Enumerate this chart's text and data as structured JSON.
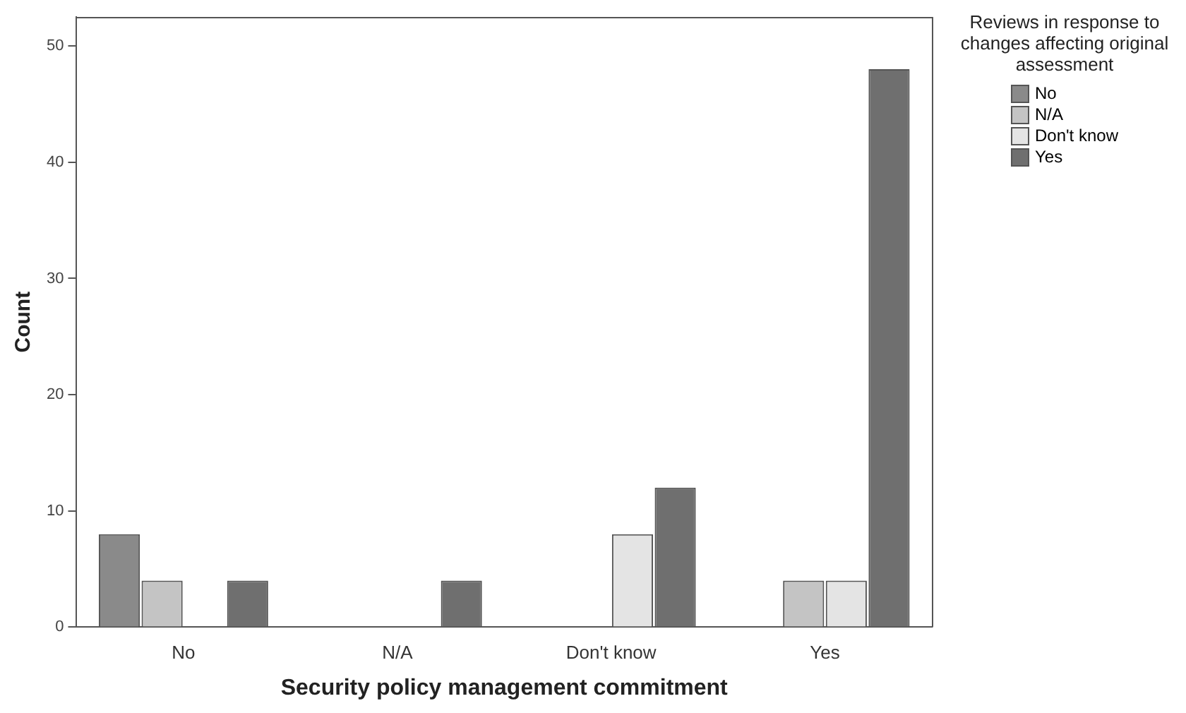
{
  "chart_data": {
    "type": "bar",
    "xlabel": "Security policy management commitment",
    "ylabel": "Count",
    "legend_title": "Reviews in response to changes affecting original assessment",
    "categories": [
      "No",
      "N/A",
      "Don't know",
      "Yes"
    ],
    "series": [
      {
        "name": "No",
        "color": "#8a8a8a",
        "values": [
          8,
          null,
          null,
          null
        ]
      },
      {
        "name": "N/A",
        "color": "#c4c4c4",
        "values": [
          4,
          null,
          null,
          4
        ]
      },
      {
        "name": "Don't know",
        "color": "#e4e4e4",
        "values": [
          null,
          null,
          8,
          4
        ]
      },
      {
        "name": "Yes",
        "color": "#6f6f6f",
        "values": [
          4,
          4,
          12,
          48
        ]
      }
    ],
    "ylim": [
      0,
      52.5
    ],
    "yticks": [
      0,
      10,
      20,
      30,
      40,
      50
    ],
    "grid": false,
    "legend": "right"
  }
}
